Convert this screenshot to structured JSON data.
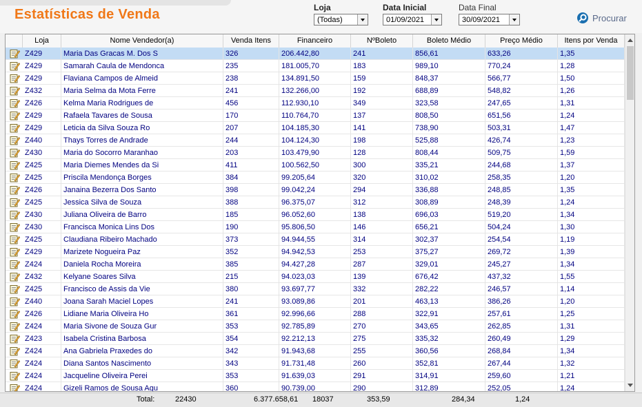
{
  "app": {
    "title": "Estatísticas de Venda"
  },
  "filters": {
    "loja": {
      "label": "Loja",
      "value": "(Todas)"
    },
    "data_inicial": {
      "label": "Data Inicial",
      "value": "01/09/2021"
    },
    "data_final": {
      "label": "Data Final",
      "value": "30/09/2021"
    },
    "search_label": "Procurar"
  },
  "icons": {
    "row_icon": "edit-note-icon",
    "search_icon": "search-icon"
  },
  "colors": {
    "title": "#f07818",
    "cell_text": "#000080",
    "selected_row": "#c3dcf4"
  },
  "table": {
    "columns": [
      "Loja",
      "Nome Vendedor(a)",
      "Venda Itens",
      "Financeiro",
      "NºBoleto",
      "Boleto Médio",
      "Preço Médio",
      "Itens por Venda"
    ],
    "selected_row": 0,
    "rows": [
      [
        "Z429",
        "Maria Das Gracas M. Dos S",
        "326",
        "206.442,80",
        "241",
        "856,61",
        "633,26",
        "1,35"
      ],
      [
        "Z429",
        "Samarah Caula de Mendonca",
        "235",
        "181.005,70",
        "183",
        "989,10",
        "770,24",
        "1,28"
      ],
      [
        "Z429",
        "Flaviana Campos de Almeid",
        "238",
        "134.891,50",
        "159",
        "848,37",
        "566,77",
        "1,50"
      ],
      [
        "Z432",
        "Maria Selma da Mota Ferre",
        "241",
        "132.266,00",
        "192",
        "688,89",
        "548,82",
        "1,26"
      ],
      [
        "Z426",
        "Kelma Maria Rodrigues de",
        "456",
        "112.930,10",
        "349",
        "323,58",
        "247,65",
        "1,31"
      ],
      [
        "Z429",
        "Rafaela Tavares de Sousa",
        "170",
        "110.764,70",
        "137",
        "808,50",
        "651,56",
        "1,24"
      ],
      [
        "Z429",
        "Leticia da Silva Souza Ro",
        "207",
        "104.185,30",
        "141",
        "738,90",
        "503,31",
        "1,47"
      ],
      [
        "Z440",
        "Thays Torres de Andrade",
        "244",
        "104.124,30",
        "198",
        "525,88",
        "426,74",
        "1,23"
      ],
      [
        "Z430",
        "Maria do Socorro Maranhao",
        "203",
        "103.479,90",
        "128",
        "808,44",
        "509,75",
        "1,59"
      ],
      [
        "Z425",
        "Maria Diemes Mendes da Si",
        "411",
        "100.562,50",
        "300",
        "335,21",
        "244,68",
        "1,37"
      ],
      [
        "Z425",
        "Priscila Mendonça Borges",
        "384",
        "99.205,64",
        "320",
        "310,02",
        "258,35",
        "1,20"
      ],
      [
        "Z426",
        "Janaina Bezerra Dos Santo",
        "398",
        "99.042,24",
        "294",
        "336,88",
        "248,85",
        "1,35"
      ],
      [
        "Z425",
        "Jessica Silva de Souza",
        "388",
        "96.375,07",
        "312",
        "308,89",
        "248,39",
        "1,24"
      ],
      [
        "Z430",
        "Juliana Oliveira de Barro",
        "185",
        "96.052,60",
        "138",
        "696,03",
        "519,20",
        "1,34"
      ],
      [
        "Z430",
        "Francisca Monica Lins Dos",
        "190",
        "95.806,50",
        "146",
        "656,21",
        "504,24",
        "1,30"
      ],
      [
        "Z425",
        "Claudiana Ribeiro Machado",
        "373",
        "94.944,55",
        "314",
        "302,37",
        "254,54",
        "1,19"
      ],
      [
        "Z429",
        "Marizete Nogueira Paz",
        "352",
        "94.942,53",
        "253",
        "375,27",
        "269,72",
        "1,39"
      ],
      [
        "Z424",
        "Daniela Rocha Moreira",
        "385",
        "94.427,28",
        "287",
        "329,01",
        "245,27",
        "1,34"
      ],
      [
        "Z432",
        "Kelyane Soares Silva",
        "215",
        "94.023,03",
        "139",
        "676,42",
        "437,32",
        "1,55"
      ],
      [
        "Z425",
        "Francisco de Assis da Vie",
        "380",
        "93.697,77",
        "332",
        "282,22",
        "246,57",
        "1,14"
      ],
      [
        "Z440",
        "Joana Sarah Maciel Lopes",
        "241",
        "93.089,86",
        "201",
        "463,13",
        "386,26",
        "1,20"
      ],
      [
        "Z426",
        "Lidiane Maria Oliveira Ho",
        "361",
        "92.996,66",
        "288",
        "322,91",
        "257,61",
        "1,25"
      ],
      [
        "Z424",
        "Maria Sivone de Souza Gur",
        "353",
        "92.785,89",
        "270",
        "343,65",
        "262,85",
        "1,31"
      ],
      [
        "Z423",
        "Isabela Cristina Barbosa",
        "354",
        "92.212,13",
        "275",
        "335,32",
        "260,49",
        "1,29"
      ],
      [
        "Z424",
        "Ana Gabriela Praxedes do",
        "342",
        "91.943,68",
        "255",
        "360,56",
        "268,84",
        "1,34"
      ],
      [
        "Z424",
        "Diana Santos Nascimento",
        "343",
        "91.731,48",
        "260",
        "352,81",
        "267,44",
        "1,32"
      ],
      [
        "Z424",
        "Jacqueline Oliveira Perei",
        "353",
        "91.639,03",
        "291",
        "314,91",
        "259,60",
        "1,21"
      ],
      [
        "Z424",
        "Gizeli Ramos de Sousa Agu",
        "360",
        "90.739,00",
        "290",
        "312,89",
        "252,05",
        "1,24"
      ]
    ]
  },
  "totals": {
    "label": "Total:",
    "venda_itens": "22430",
    "financeiro": "6.377.658,61",
    "boleto": "18037",
    "boleto_medio": "353,59",
    "preco_medio": "284,34",
    "itens_por_venda": "1,24"
  }
}
